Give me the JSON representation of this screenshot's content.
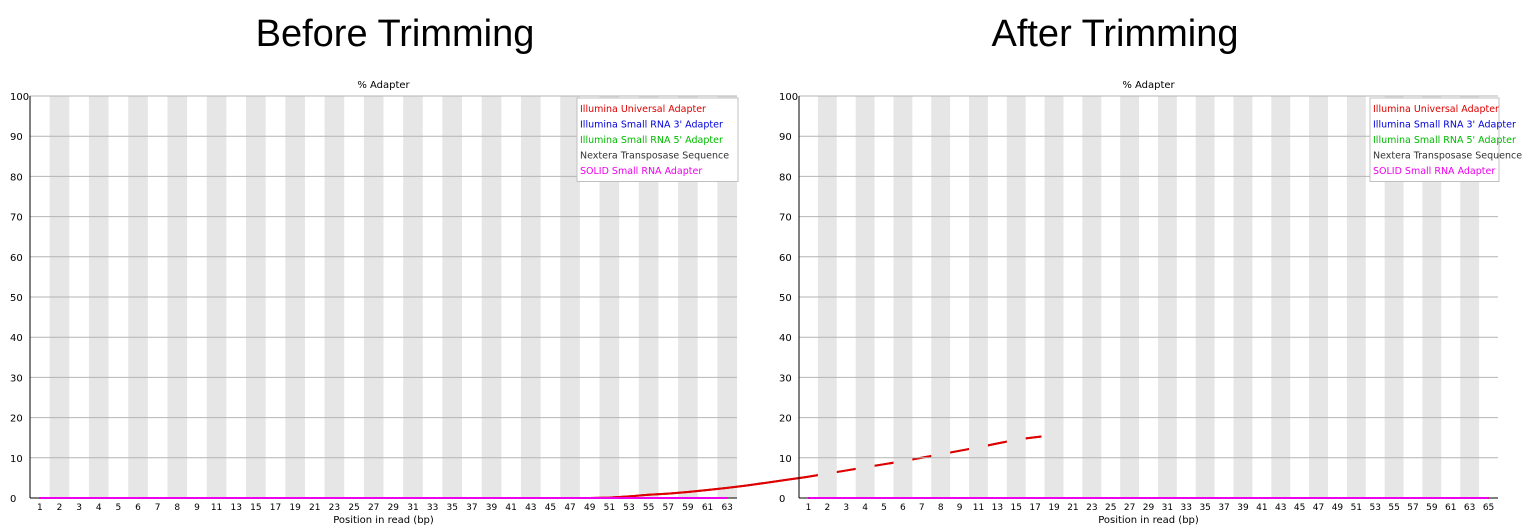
{
  "panels": [
    {
      "heading": "Before Trimming",
      "chart_data": {
        "type": "line",
        "title": "% Adapter",
        "xlabel": "Position in read (bp)",
        "ylabel": "",
        "ylim": [
          0,
          100
        ],
        "yticks": [
          0,
          10,
          20,
          30,
          40,
          50,
          60,
          70,
          80,
          90,
          100
        ],
        "x_tick_labels": [
          "1",
          "2",
          "3",
          "4",
          "5",
          "6",
          "7",
          "8",
          "9",
          "11",
          "13",
          "15",
          "17",
          "19",
          "21",
          "23",
          "25",
          "27",
          "29",
          "31",
          "33",
          "35",
          "37",
          "39",
          "41",
          "43",
          "45",
          "47",
          "49",
          "51",
          "53",
          "55",
          "57",
          "59",
          "61",
          "63"
        ],
        "grid": "horizontal",
        "legend_position": "top-right",
        "series": [
          {
            "name": "Illumina Universal Adapter",
            "color": "#dd0000",
            "values": [
              0,
              0,
              0,
              0,
              0,
              0,
              0,
              0,
              0,
              0,
              0,
              0,
              0,
              0,
              0,
              0,
              0,
              0,
              0,
              0,
              0,
              0,
              0,
              0,
              0,
              0,
              0,
              0,
              0,
              0.1,
              0.4,
              0.8,
              1.1,
              1.5,
              2,
              2.5,
              3.1,
              3.8,
              4.5,
              5.2,
              6,
              6.8,
              7.6,
              8.4,
              9.2,
              10.1,
              11,
              11.9,
              12.8,
              13.8,
              14.7,
              15.3
            ]
          },
          {
            "name": "Illumina Small RNA 3' Adapter",
            "color": "#0000dd",
            "values": [
              0
            ]
          },
          {
            "name": "Illumina Small RNA 5' Adapter",
            "color": "#00bb00",
            "values": [
              0
            ]
          },
          {
            "name": "Nextera Transposase Sequence",
            "color": "#333333",
            "values": [
              0
            ]
          },
          {
            "name": "SOLID Small RNA Adapter",
            "color": "#ee00ee",
            "values": [
              0
            ]
          }
        ]
      }
    },
    {
      "heading": "After Trimming",
      "chart_data": {
        "type": "line",
        "title": "% Adapter",
        "xlabel": "Position in read (bp)",
        "ylabel": "",
        "ylim": [
          0,
          100
        ],
        "yticks": [
          0,
          10,
          20,
          30,
          40,
          50,
          60,
          70,
          80,
          90,
          100
        ],
        "x_tick_labels": [
          "1",
          "2",
          "3",
          "4",
          "5",
          "6",
          "7",
          "8",
          "9",
          "11",
          "13",
          "15",
          "17",
          "19",
          "21",
          "23",
          "25",
          "27",
          "29",
          "31",
          "33",
          "35",
          "37",
          "39",
          "41",
          "43",
          "45",
          "47",
          "49",
          "51",
          "53",
          "55",
          "57",
          "59",
          "61",
          "63",
          "65"
        ],
        "grid": "horizontal",
        "legend_position": "top-right",
        "series": [
          {
            "name": "Illumina Universal Adapter",
            "color": "#dd0000",
            "values": [
              0
            ]
          },
          {
            "name": "Illumina Small RNA 3' Adapter",
            "color": "#0000dd",
            "values": [
              0
            ]
          },
          {
            "name": "Illumina Small RNA 5' Adapter",
            "color": "#00bb00",
            "values": [
              0
            ]
          },
          {
            "name": "Nextera Transposase Sequence",
            "color": "#333333",
            "values": [
              0
            ]
          },
          {
            "name": "SOLID Small RNA Adapter",
            "color": "#ee00ee",
            "values": [
              0
            ]
          }
        ]
      }
    }
  ]
}
